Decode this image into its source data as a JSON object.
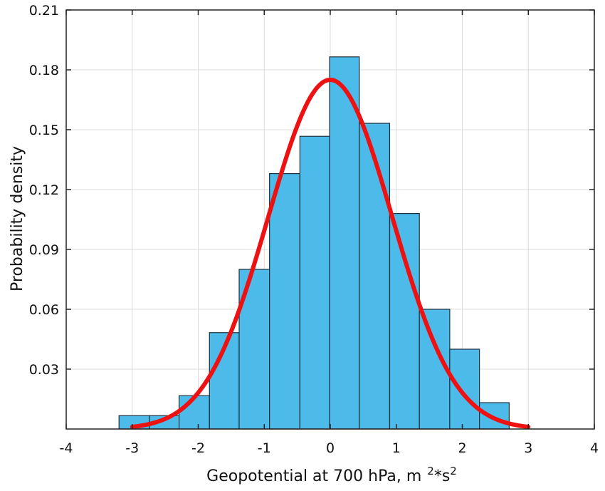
{
  "chart_data": {
    "type": "bar",
    "subtype": "histogram with fitted normal curve",
    "title": "",
    "xlabel": "Geopotential at 700 hPa, m",
    "xlabel_unit_parts": [
      "2",
      "*s",
      "2"
    ],
    "ylabel": "Probability density",
    "xlim": [
      -4,
      4
    ],
    "ylim": [
      0,
      0.21
    ],
    "xticks": [
      -4,
      -3,
      -2,
      -1,
      0,
      1,
      2,
      3,
      4
    ],
    "xtick_labels": [
      "-4",
      "-3",
      "-2",
      "-1",
      "0",
      "1",
      "2",
      "3",
      "4"
    ],
    "yticks": [
      0.03,
      0.06,
      0.09,
      0.12,
      0.15,
      0.18,
      0.21
    ],
    "ytick_labels": [
      "0.03",
      "0.06",
      "0.09",
      "0.12",
      "0.15",
      "0.18",
      "0.21"
    ],
    "grid": true,
    "bar_color": "#4dbbea",
    "bar_edge_color": "#1f2f3a",
    "curve_color": "#ee1111",
    "bin_edges": [
      -3.2,
      -2.74,
      -2.29,
      -1.83,
      -1.38,
      -0.92,
      -0.46,
      -0.01,
      0.44,
      0.9,
      1.35,
      1.81,
      2.26,
      2.71
    ],
    "values": [
      0.0067,
      0.0067,
      0.0167,
      0.0483,
      0.08,
      0.128,
      0.1467,
      0.1865,
      0.1532,
      0.108,
      0.06,
      0.04,
      0.0132
    ],
    "fit": {
      "distribution": "normal",
      "mean": 0.0,
      "std": 0.94,
      "x_range": [
        -3,
        3
      ],
      "peak_density": 0.175
    }
  }
}
